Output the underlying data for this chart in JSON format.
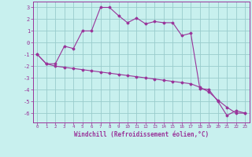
{
  "xlabel": "Windchill (Refroidissement éolien,°C)",
  "background_color": "#c8f0ee",
  "line_color": "#993399",
  "grid_color": "#99cccc",
  "xlim": [
    -0.5,
    23.5
  ],
  "ylim": [
    -6.8,
    3.5
  ],
  "yticks": [
    3,
    2,
    1,
    0,
    -1,
    -2,
    -3,
    -4,
    -5,
    -6
  ],
  "xticks": [
    0,
    1,
    2,
    3,
    4,
    5,
    6,
    7,
    8,
    9,
    10,
    11,
    12,
    13,
    14,
    15,
    16,
    17,
    18,
    19,
    20,
    21,
    22,
    23
  ],
  "curve1_x": [
    0,
    1,
    2,
    3,
    4,
    5,
    6,
    7,
    8,
    9,
    10,
    11,
    12,
    13,
    14,
    15,
    16,
    17,
    18,
    19,
    20,
    21,
    22,
    23
  ],
  "curve1_y": [
    -1.0,
    -1.8,
    -1.8,
    -0.3,
    -0.5,
    1.0,
    1.0,
    3.0,
    3.0,
    2.3,
    1.7,
    2.1,
    1.6,
    1.8,
    1.7,
    1.7,
    0.6,
    0.8,
    -3.9,
    -4.0,
    -5.0,
    -6.2,
    -5.8,
    -6.0
  ],
  "curve2_x": [
    0,
    1,
    2,
    3,
    4,
    5,
    6,
    7,
    8,
    9,
    10,
    11,
    12,
    13,
    14,
    15,
    16,
    17,
    18,
    19,
    20,
    21,
    22,
    23
  ],
  "curve2_y": [
    -1.0,
    -1.8,
    -2.0,
    -2.1,
    -2.2,
    -2.3,
    -2.4,
    -2.5,
    -2.6,
    -2.7,
    -2.8,
    -2.9,
    -3.0,
    -3.1,
    -3.2,
    -3.3,
    -3.4,
    -3.5,
    -3.8,
    -4.2,
    -4.9,
    -5.5,
    -6.0,
    -6.0
  ],
  "marker": "D",
  "markersize": 1.5,
  "linewidth": 0.8
}
